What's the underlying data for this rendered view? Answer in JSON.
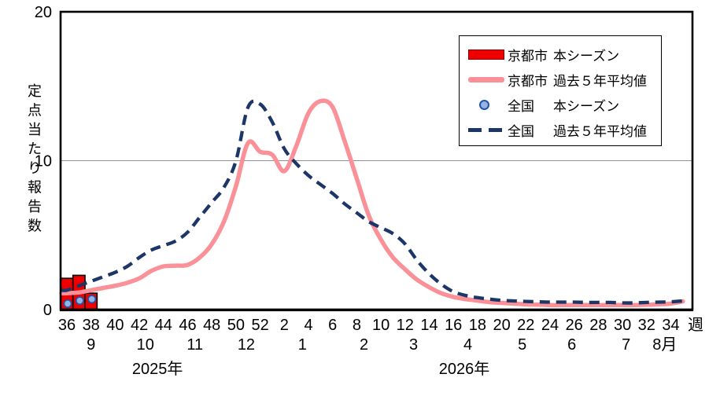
{
  "colors": {
    "kyoto_bar": "#ee0000",
    "kyoto_bar_border": "#000000",
    "kyoto_avg_line": "#fa9198",
    "national_dot_fill": "#93b5e5",
    "national_dot_border": "#2255aa",
    "national_avg_line": "#1c3667",
    "gridline": "#909090",
    "axis": "#000000"
  },
  "y_axis": {
    "title_vertical": "定点当たり報告数",
    "tick_labels": [
      "0",
      "10",
      "20"
    ],
    "max": 20
  },
  "x_axis": {
    "unit_label": "週",
    "tick_labels": [
      "36",
      "38",
      "40",
      "42",
      "44",
      "46",
      "48",
      "50",
      "52",
      "2",
      "4",
      "6",
      "8",
      "10",
      "12",
      "14",
      "16",
      "18",
      "20",
      "22",
      "24",
      "26",
      "28",
      "30",
      "32",
      "34"
    ],
    "months": [
      {
        "label": "9",
        "week_pos": 2.0
      },
      {
        "label": "10",
        "week_pos": 6.5
      },
      {
        "label": "11",
        "week_pos": 10.6
      },
      {
        "label": "12",
        "week_pos": 14.85
      },
      {
        "label": "1",
        "week_pos": 19.5
      },
      {
        "label": "2",
        "week_pos": 24.6
      },
      {
        "label": "3",
        "week_pos": 28.7
      },
      {
        "label": "4",
        "week_pos": 33.2
      },
      {
        "label": "5",
        "week_pos": 37.7
      },
      {
        "label": "6",
        "week_pos": 41.8
      },
      {
        "label": "7",
        "week_pos": 46.3
      },
      {
        "label": "8月",
        "week_pos": 49.5
      }
    ],
    "years": [
      {
        "label": "2025年",
        "week_pos": 7.5
      },
      {
        "label": "2026年",
        "week_pos": 32.9
      }
    ]
  },
  "legend": {
    "items": [
      {
        "swatch": "red-bar-swatch",
        "region": "京都市",
        "series": "本シーズン"
      },
      {
        "swatch": "pink-line-swatch",
        "region": "京都市",
        "series": "過去５年平均値"
      },
      {
        "swatch": "blue-dot-swatch",
        "region": "全国",
        "series": "本シーズン"
      },
      {
        "swatch": "navy-dash-swatch",
        "region": "全国",
        "series": "過去５年平均値"
      }
    ]
  },
  "chart_data": {
    "type": "line",
    "title": "",
    "xlabel": "週",
    "ylabel": "定点当たり報告数",
    "ylim": [
      0,
      20
    ],
    "grid_y_values": [
      10
    ],
    "legend_position": "top-right",
    "weeks": [
      "36",
      "37",
      "38",
      "39",
      "40",
      "41",
      "42",
      "43",
      "44",
      "45",
      "46",
      "47",
      "48",
      "49",
      "50",
      "51",
      "52",
      "1",
      "2",
      "3",
      "4",
      "5",
      "6",
      "7",
      "8",
      "9",
      "10",
      "11",
      "12",
      "13",
      "14",
      "15",
      "16",
      "17",
      "18",
      "19",
      "20",
      "21",
      "22",
      "23",
      "24",
      "25",
      "26",
      "27",
      "28",
      "29",
      "30",
      "31",
      "32",
      "33",
      "34",
      "35"
    ],
    "series": [
      {
        "name": "京都市 本シーズン",
        "type": "bar",
        "color": "#ee0000",
        "start_week": "36",
        "values": [
          2.1,
          2.3,
          1.1
        ]
      },
      {
        "name": "京都市 過去５年平均値",
        "type": "line",
        "color": "#fa9198",
        "values": [
          1.1,
          1.15,
          1.3,
          1.45,
          1.6,
          1.8,
          2.1,
          2.6,
          2.9,
          2.95,
          3.0,
          3.5,
          4.4,
          5.9,
          8.3,
          11.2,
          10.6,
          10.4,
          9.3,
          11.0,
          13.2,
          14.0,
          13.6,
          11.3,
          8.8,
          6.3,
          4.7,
          3.5,
          2.7,
          2.0,
          1.5,
          1.1,
          0.85,
          0.7,
          0.6,
          0.5,
          0.45,
          0.4,
          0.35,
          0.33,
          0.3,
          0.3,
          0.3,
          0.3,
          0.3,
          0.3,
          0.3,
          0.3,
          0.32,
          0.35,
          0.4,
          0.55
        ]
      },
      {
        "name": "全国 本シーズン",
        "type": "scatter",
        "color": "#93b5e5",
        "start_week": "36",
        "values": [
          0.4,
          0.6,
          0.7
        ]
      },
      {
        "name": "全国 過去５年平均値",
        "type": "dashed-line",
        "color": "#1c3667",
        "values": [
          1.3,
          1.6,
          1.9,
          2.2,
          2.5,
          2.9,
          3.5,
          4.0,
          4.3,
          4.6,
          5.2,
          6.2,
          7.2,
          8.2,
          10.0,
          13.6,
          13.8,
          12.6,
          10.8,
          9.8,
          9.0,
          8.4,
          7.8,
          7.1,
          6.5,
          5.9,
          5.5,
          5.1,
          4.4,
          3.3,
          2.4,
          1.7,
          1.2,
          0.95,
          0.8,
          0.7,
          0.62,
          0.58,
          0.55,
          0.52,
          0.5,
          0.5,
          0.5,
          0.48,
          0.48,
          0.48,
          0.45,
          0.45,
          0.48,
          0.5,
          0.52,
          0.58
        ]
      }
    ]
  }
}
